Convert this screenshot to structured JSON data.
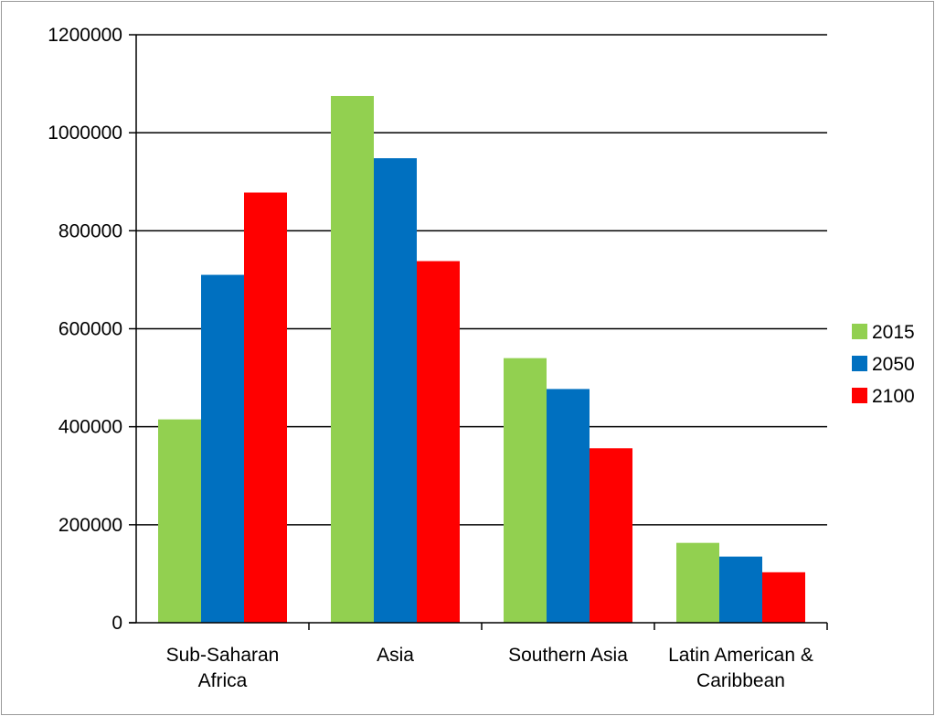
{
  "chart_data": {
    "type": "bar",
    "title": "",
    "xlabel": "",
    "ylabel": "",
    "ylim": [
      0,
      1200000
    ],
    "yticks": [
      0,
      200000,
      400000,
      600000,
      800000,
      1000000,
      1200000
    ],
    "ytick_labels": [
      "0",
      "200000",
      "400000",
      "600000",
      "800000",
      "1000000",
      "1200000"
    ],
    "grid": "horizontal",
    "legend_position": "right",
    "categories": [
      [
        "Sub-Saharan",
        "Africa"
      ],
      [
        "Asia"
      ],
      [
        "Southern Asia"
      ],
      [
        "Latin American &",
        "Caribbean"
      ]
    ],
    "series": [
      {
        "name": "2015",
        "color": "#92d050",
        "values": [
          415000,
          1075000,
          540000,
          163000
        ]
      },
      {
        "name": "2050",
        "color": "#0070c0",
        "values": [
          710000,
          948000,
          477000,
          135000
        ]
      },
      {
        "name": "2100",
        "color": "#ff0000",
        "values": [
          878000,
          738000,
          356000,
          103000
        ]
      }
    ]
  }
}
